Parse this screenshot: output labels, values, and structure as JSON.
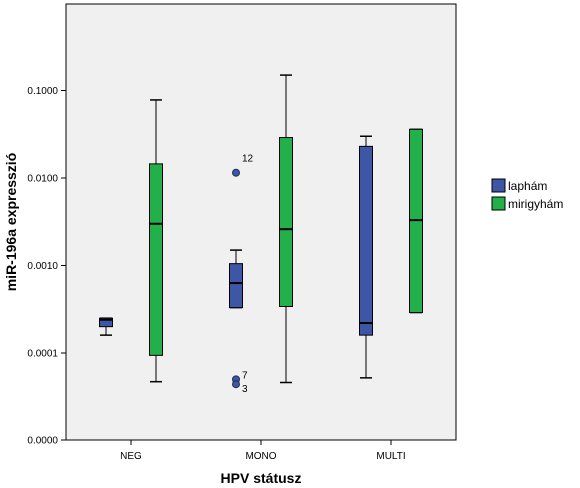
{
  "chart_data": {
    "type": "box",
    "xlabel": "HPV státusz",
    "ylabel": "miR-196a expresszió",
    "y_scale": "log",
    "y_ticks": [
      {
        "value": 0.0,
        "label": "0.0000"
      },
      {
        "value": 0.0001,
        "label": "0.0001"
      },
      {
        "value": 0.001,
        "label": "0.0010"
      },
      {
        "value": 0.01,
        "label": "0.0100"
      },
      {
        "value": 0.1,
        "label": "0.1000"
      }
    ],
    "categories": [
      "NEG",
      "MONO",
      "MULTI"
    ],
    "legend": {
      "position": "right"
    },
    "series": [
      {
        "name": "laphám",
        "color": "#3d57a6",
        "boxes": [
          {
            "category": "NEG",
            "min": 0.00016,
            "q1": 0.0002,
            "median": 0.00024,
            "q3": 0.00025,
            "max": 0.00025,
            "outliers": []
          },
          {
            "category": "MONO",
            "min": 0.00033,
            "q1": 0.00033,
            "median": 0.00063,
            "q3": 0.00105,
            "max": 0.0015,
            "outliers": [
              {
                "value": 0.0115,
                "label": "12"
              },
              {
                "value": 5e-05,
                "label": "7"
              },
              {
                "value": 4.4e-05,
                "label": "3"
              }
            ]
          },
          {
            "category": "MULTI",
            "min": 5.2e-05,
            "q1": 0.00016,
            "median": 0.00022,
            "q3": 0.023,
            "max": 0.03,
            "outliers": []
          }
        ]
      },
      {
        "name": "mirigyhám",
        "color": "#23b04a",
        "boxes": [
          {
            "category": "NEG",
            "min": 4.7e-05,
            "q1": 9.4e-05,
            "median": 0.003,
            "q3": 0.0145,
            "max": 0.078,
            "outliers": []
          },
          {
            "category": "MONO",
            "min": 4.6e-05,
            "q1": 0.00034,
            "median": 0.0026,
            "q3": 0.029,
            "max": 0.15,
            "outliers": []
          },
          {
            "category": "MULTI",
            "min": 0.00029,
            "q1": 0.00029,
            "median": 0.0033,
            "q3": 0.036,
            "max": 0.036,
            "outliers": []
          }
        ]
      }
    ]
  }
}
